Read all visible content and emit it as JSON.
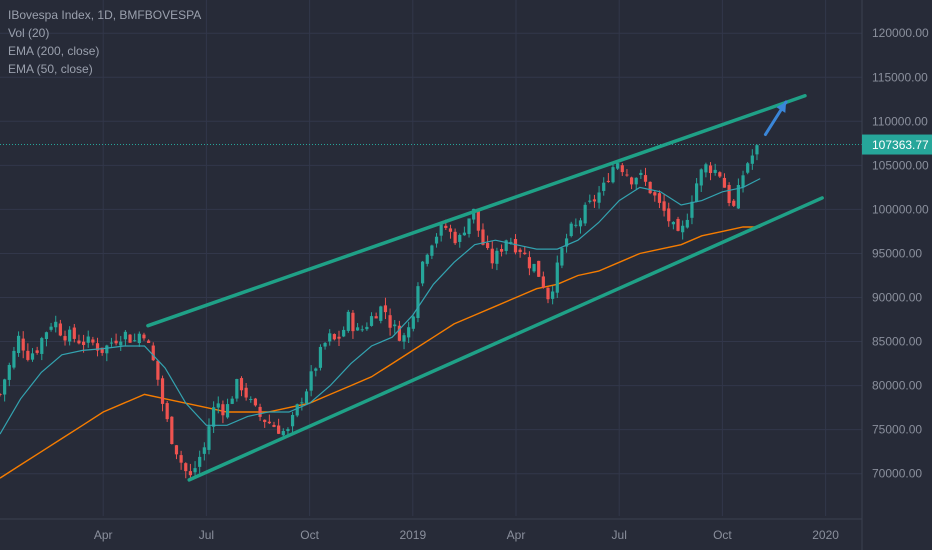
{
  "legend": {
    "symbol_line": "IBovespa Index, 1D, BMFBOVESPA",
    "vol_line": "Vol (20)",
    "ema200_line": "EMA (200, close)",
    "ema50_line": "EMA (50, close)"
  },
  "chart_data": {
    "type": "candlestick",
    "title": "IBovespa Index, 1D, BMFBOVESPA",
    "ylim": [
      65200,
      124500
    ],
    "y_ticks": [
      70000,
      75000,
      80000,
      85000,
      90000,
      95000,
      100000,
      105000,
      110000,
      115000,
      120000
    ],
    "y_tick_labels": [
      "70000.00",
      "75000.00",
      "80000.00",
      "85000.00",
      "90000.00",
      "95000.00",
      "100000.00",
      "105000.00",
      "110000.00",
      "115000.00",
      "120000.00"
    ],
    "x_tick_labels": [
      {
        "label": "Apr",
        "t": 3.0
      },
      {
        "label": "Jul",
        "t": 6.0
      },
      {
        "label": "Oct",
        "t": 9.0
      },
      {
        "label": "2019",
        "t": 12.0
      },
      {
        "label": "Apr",
        "t": 15.0
      },
      {
        "label": "Jul",
        "t": 18.0
      },
      {
        "label": "Oct",
        "t": 21.0
      },
      {
        "label": "2020",
        "t": 24.0
      }
    ],
    "last_price": 107363.77,
    "last_price_label": "107363.77",
    "price_path": [
      [
        0.0,
        79000
      ],
      [
        0.15,
        81000
      ],
      [
        0.35,
        83000
      ],
      [
        0.55,
        85500
      ],
      [
        0.8,
        83500
      ],
      [
        1.05,
        84000
      ],
      [
        1.3,
        86000
      ],
      [
        1.55,
        87500
      ],
      [
        1.8,
        86000
      ],
      [
        2.1,
        85500
      ],
      [
        2.4,
        85000
      ],
      [
        2.7,
        84800
      ],
      [
        3.0,
        84000
      ],
      [
        3.3,
        85200
      ],
      [
        3.6,
        86000
      ],
      [
        3.9,
        85000
      ],
      [
        4.15,
        86500
      ],
      [
        4.35,
        84000
      ],
      [
        4.55,
        81500
      ],
      [
        4.75,
        77500
      ],
      [
        4.95,
        74500
      ],
      [
        5.15,
        72500
      ],
      [
        5.35,
        70500
      ],
      [
        5.55,
        69500
      ],
      [
        5.75,
        71500
      ],
      [
        5.95,
        73000
      ],
      [
        6.15,
        77000
      ],
      [
        6.35,
        78000
      ],
      [
        6.55,
        77000
      ],
      [
        6.75,
        79000
      ],
      [
        6.95,
        80500
      ],
      [
        7.15,
        79000
      ],
      [
        7.35,
        77500
      ],
      [
        7.55,
        76500
      ],
      [
        7.75,
        76000
      ],
      [
        7.95,
        75500
      ],
      [
        8.15,
        75000
      ],
      [
        8.35,
        74500
      ],
      [
        8.55,
        76500
      ],
      [
        8.75,
        78500
      ],
      [
        8.95,
        80000
      ],
      [
        9.15,
        82000
      ],
      [
        9.35,
        84000
      ],
      [
        9.55,
        85500
      ],
      [
        9.75,
        85000
      ],
      [
        9.95,
        86000
      ],
      [
        10.15,
        88000
      ],
      [
        10.35,
        86000
      ],
      [
        10.55,
        86500
      ],
      [
        10.75,
        87500
      ],
      [
        10.95,
        88500
      ],
      [
        11.15,
        89000
      ],
      [
        11.35,
        87000
      ],
      [
        11.55,
        86000
      ],
      [
        11.75,
        85500
      ],
      [
        11.95,
        87000
      ],
      [
        12.15,
        92000
      ],
      [
        12.35,
        95000
      ],
      [
        12.55,
        96500
      ],
      [
        12.75,
        97500
      ],
      [
        12.95,
        98000
      ],
      [
        13.15,
        97000
      ],
      [
        13.35,
        96500
      ],
      [
        13.55,
        98500
      ],
      [
        13.75,
        100000
      ],
      [
        13.95,
        97000
      ],
      [
        14.15,
        95000
      ],
      [
        14.35,
        94000
      ],
      [
        14.55,
        95500
      ],
      [
        14.75,
        97000
      ],
      [
        14.95,
        96000
      ],
      [
        15.15,
        95500
      ],
      [
        15.35,
        94000
      ],
      [
        15.55,
        93500
      ],
      [
        15.75,
        92000
      ],
      [
        15.95,
        90000
      ],
      [
        16.15,
        92500
      ],
      [
        16.35,
        95500
      ],
      [
        16.55,
        97500
      ],
      [
        16.75,
        98000
      ],
      [
        16.95,
        99500
      ],
      [
        17.15,
        100500
      ],
      [
        17.35,
        101500
      ],
      [
        17.55,
        102500
      ],
      [
        17.75,
        104500
      ],
      [
        17.95,
        105500
      ],
      [
        18.15,
        104500
      ],
      [
        18.35,
        103500
      ],
      [
        18.55,
        104000
      ],
      [
        18.75,
        103000
      ],
      [
        18.95,
        102000
      ],
      [
        19.15,
        100500
      ],
      [
        19.35,
        99500
      ],
      [
        19.55,
        98000
      ],
      [
        19.75,
        96500
      ],
      [
        19.95,
        99000
      ],
      [
        20.15,
        102000
      ],
      [
        20.35,
        104000
      ],
      [
        20.55,
        105000
      ],
      [
        20.75,
        104500
      ],
      [
        20.95,
        104000
      ],
      [
        21.15,
        101500
      ],
      [
        21.35,
        100000
      ],
      [
        21.55,
        103500
      ],
      [
        21.75,
        105500
      ],
      [
        21.95,
        106500
      ],
      [
        22.1,
        107363.77
      ]
    ],
    "ema50": [
      [
        0.0,
        74500
      ],
      [
        0.6,
        78500
      ],
      [
        1.2,
        81500
      ],
      [
        1.8,
        83500
      ],
      [
        2.4,
        84000
      ],
      [
        3.0,
        84200
      ],
      [
        3.6,
        84500
      ],
      [
        4.2,
        84500
      ],
      [
        4.8,
        82000
      ],
      [
        5.4,
        78000
      ],
      [
        6.0,
        75500
      ],
      [
        6.6,
        75500
      ],
      [
        7.2,
        76500
      ],
      [
        7.8,
        77000
      ],
      [
        8.4,
        77000
      ],
      [
        9.0,
        78000
      ],
      [
        9.6,
        80000
      ],
      [
        10.2,
        82500
      ],
      [
        10.8,
        84500
      ],
      [
        11.4,
        85500
      ],
      [
        12.0,
        88000
      ],
      [
        12.6,
        91500
      ],
      [
        13.2,
        94000
      ],
      [
        13.8,
        96000
      ],
      [
        14.4,
        96500
      ],
      [
        15.0,
        96000
      ],
      [
        15.6,
        95500
      ],
      [
        16.2,
        95500
      ],
      [
        16.8,
        96500
      ],
      [
        17.4,
        98500
      ],
      [
        18.0,
        101000
      ],
      [
        18.6,
        102500
      ],
      [
        19.2,
        102000
      ],
      [
        19.8,
        100500
      ],
      [
        20.4,
        101000
      ],
      [
        21.0,
        102000
      ],
      [
        21.6,
        102500
      ],
      [
        22.1,
        103500
      ]
    ],
    "ema200": [
      [
        0.0,
        69500
      ],
      [
        0.6,
        71000
      ],
      [
        1.2,
        72500
      ],
      [
        1.8,
        74000
      ],
      [
        2.4,
        75500
      ],
      [
        3.0,
        77000
      ],
      [
        3.6,
        78000
      ],
      [
        4.2,
        79000
      ],
      [
        4.8,
        78500
      ],
      [
        5.4,
        78000
      ],
      [
        6.0,
        77500
      ],
      [
        6.6,
        77000
      ],
      [
        7.2,
        77000
      ],
      [
        7.8,
        77000
      ],
      [
        8.4,
        77500
      ],
      [
        9.0,
        78000
      ],
      [
        9.6,
        79000
      ],
      [
        10.2,
        80000
      ],
      [
        10.8,
        81000
      ],
      [
        11.4,
        82500
      ],
      [
        12.0,
        84000
      ],
      [
        12.6,
        85500
      ],
      [
        13.2,
        87000
      ],
      [
        13.8,
        88000
      ],
      [
        14.4,
        89000
      ],
      [
        15.0,
        90000
      ],
      [
        15.6,
        91000
      ],
      [
        16.2,
        91500
      ],
      [
        16.8,
        92500
      ],
      [
        17.4,
        93000
      ],
      [
        18.0,
        94000
      ],
      [
        18.6,
        95000
      ],
      [
        19.2,
        95500
      ],
      [
        19.8,
        96000
      ],
      [
        20.4,
        97000
      ],
      [
        21.0,
        97500
      ],
      [
        21.6,
        98000
      ],
      [
        22.1,
        98000
      ]
    ],
    "channel": {
      "upper": [
        [
          4.3,
          86800
        ],
        [
          23.4,
          112900
        ]
      ],
      "lower": [
        [
          5.5,
          69300
        ],
        [
          23.9,
          101300
        ]
      ]
    },
    "forecast_arrow": [
      [
        22.25,
        108500
      ],
      [
        22.85,
        112200
      ]
    ],
    "colors": {
      "background": "#272b38",
      "up_candle": "#26a69a",
      "down_candle": "#ef5350",
      "ema50": "#33a3b0",
      "ema200": "#f57c00",
      "channel": "#1fa187",
      "arrow": "#3a86d8",
      "last_price_badge": "#26a69a",
      "axis_text": "#8a8f9c"
    }
  }
}
